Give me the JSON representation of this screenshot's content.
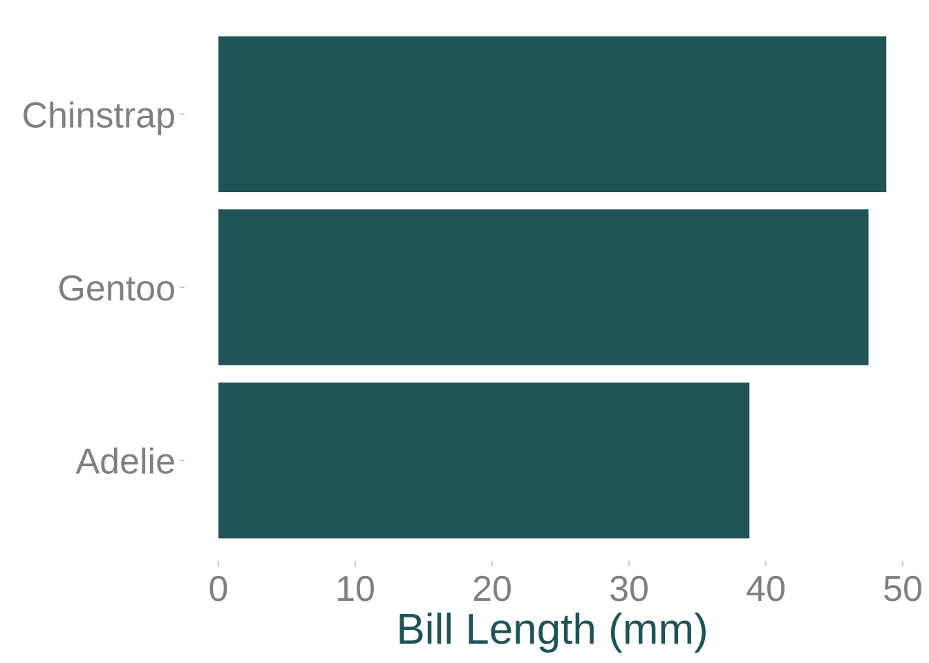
{
  "chart_data": {
    "type": "bar",
    "orientation": "horizontal",
    "categories": [
      "Chinstrap",
      "Gentoo",
      "Adelie"
    ],
    "values": [
      48.8,
      47.5,
      38.8
    ],
    "xlabel": "Bill Length (mm)",
    "ylabel": "",
    "xlim": [
      0,
      50
    ],
    "xticks": [
      "0",
      "10",
      "20",
      "30",
      "40",
      "50"
    ],
    "grid": false,
    "legend": "none",
    "colors": {
      "bar": "#1f5355",
      "tick_text": "#7f7f7f",
      "axis_title": "#1f5355"
    }
  }
}
